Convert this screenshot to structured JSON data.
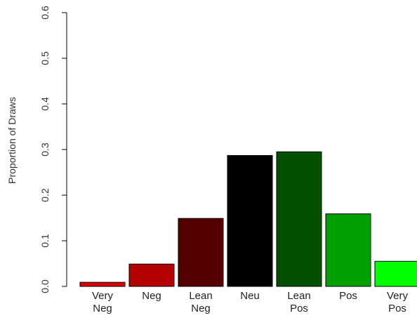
{
  "chart_data": {
    "type": "bar",
    "title": "",
    "xlabel": "",
    "ylabel": "Proportion of Draws",
    "ylim": [
      0,
      0.6
    ],
    "yticks": [
      "0.0",
      "0.1",
      "0.2",
      "0.3",
      "0.4",
      "0.5",
      "0.6"
    ],
    "categories": [
      [
        "Very",
        "Neg"
      ],
      [
        "Neg"
      ],
      [
        "Lean",
        "Neg"
      ],
      [
        "Neu"
      ],
      [
        "Lean",
        "Pos"
      ],
      [
        "Pos"
      ],
      [
        "Very",
        "Pos"
      ]
    ],
    "values": [
      0.009,
      0.049,
      0.149,
      0.287,
      0.295,
      0.159,
      0.055
    ],
    "colors": [
      "#e00000",
      "#b40000",
      "#550000",
      "#000000",
      "#005000",
      "#00a000",
      "#00ff00"
    ],
    "grid": false,
    "legend": "none"
  }
}
